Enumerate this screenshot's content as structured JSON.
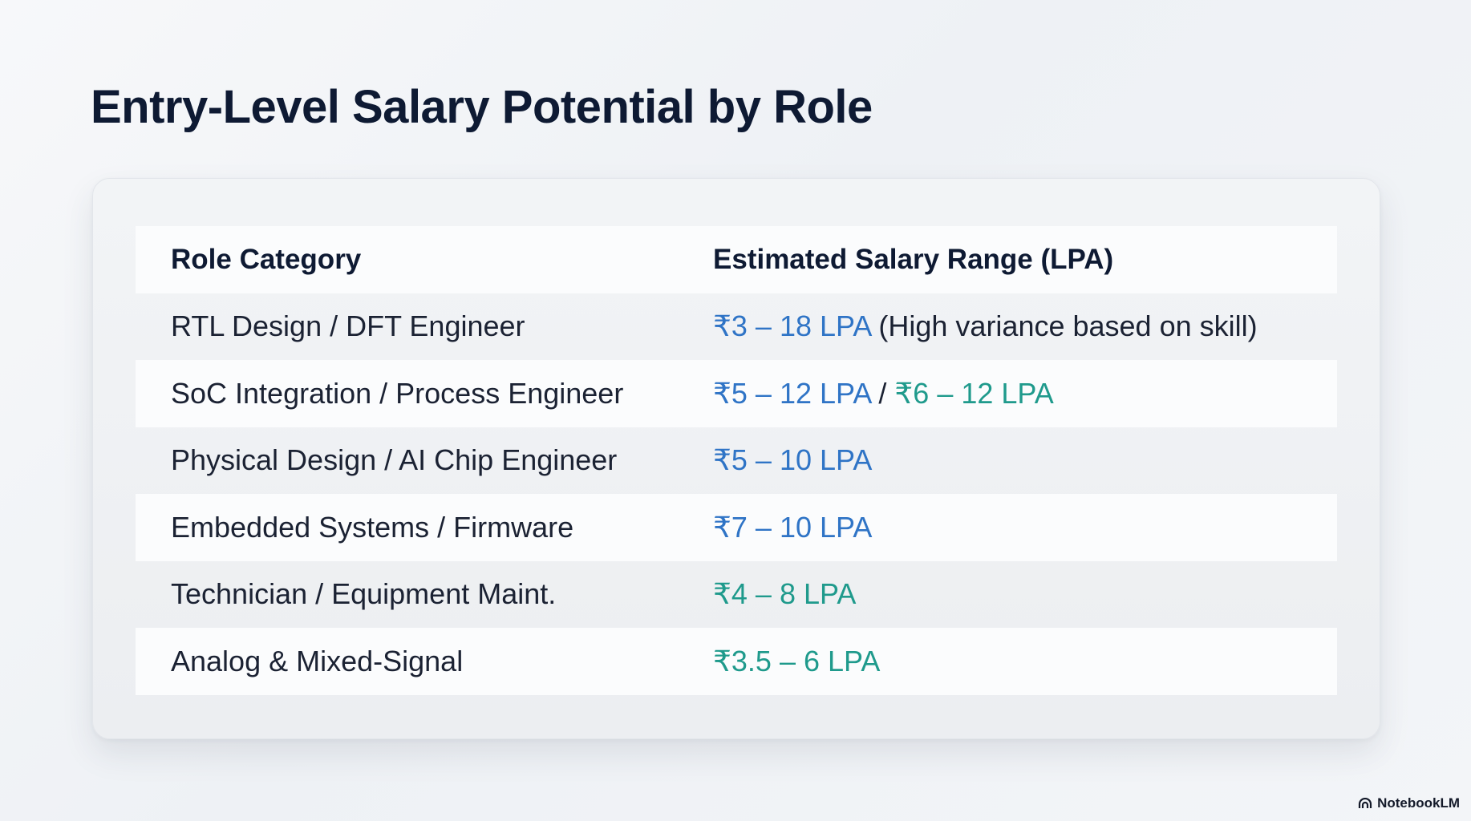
{
  "slide": {
    "title": "Entry-Level Salary Potential by Role"
  },
  "table": {
    "headers": {
      "role": "Role Category",
      "salary": "Estimated Salary Range (LPA)"
    },
    "rows": [
      {
        "role": "RTL Design / DFT Engineer",
        "salary_a": "₹3 – 18 LPA",
        "note": " (High variance based on skill)"
      },
      {
        "role": "SoC Integration / Process Engineer",
        "salary_a": "₹5 – 12 LPA",
        "separator": " / ",
        "salary_b": "₹6 – 12 LPA"
      },
      {
        "role": "Physical Design / AI Chip Engineer",
        "salary_a": "₹5 – 10 LPA"
      },
      {
        "role": "Embedded Systems / Firmware",
        "salary_a": "₹7 – 10 LPA"
      },
      {
        "role": "Technician / Equipment Maint.",
        "salary_a": "₹4 – 8 LPA"
      },
      {
        "role": "Analog & Mixed-Signal",
        "salary_a": "₹3.5 – 6 LPA"
      }
    ]
  },
  "colors": {
    "title": "#0e1a33",
    "salary_blue": "#2f74c6",
    "salary_teal": "#1f9a8c"
  },
  "footer": {
    "brand": "NotebookLM",
    "brand_icon": "notebooklm-logo-icon"
  }
}
